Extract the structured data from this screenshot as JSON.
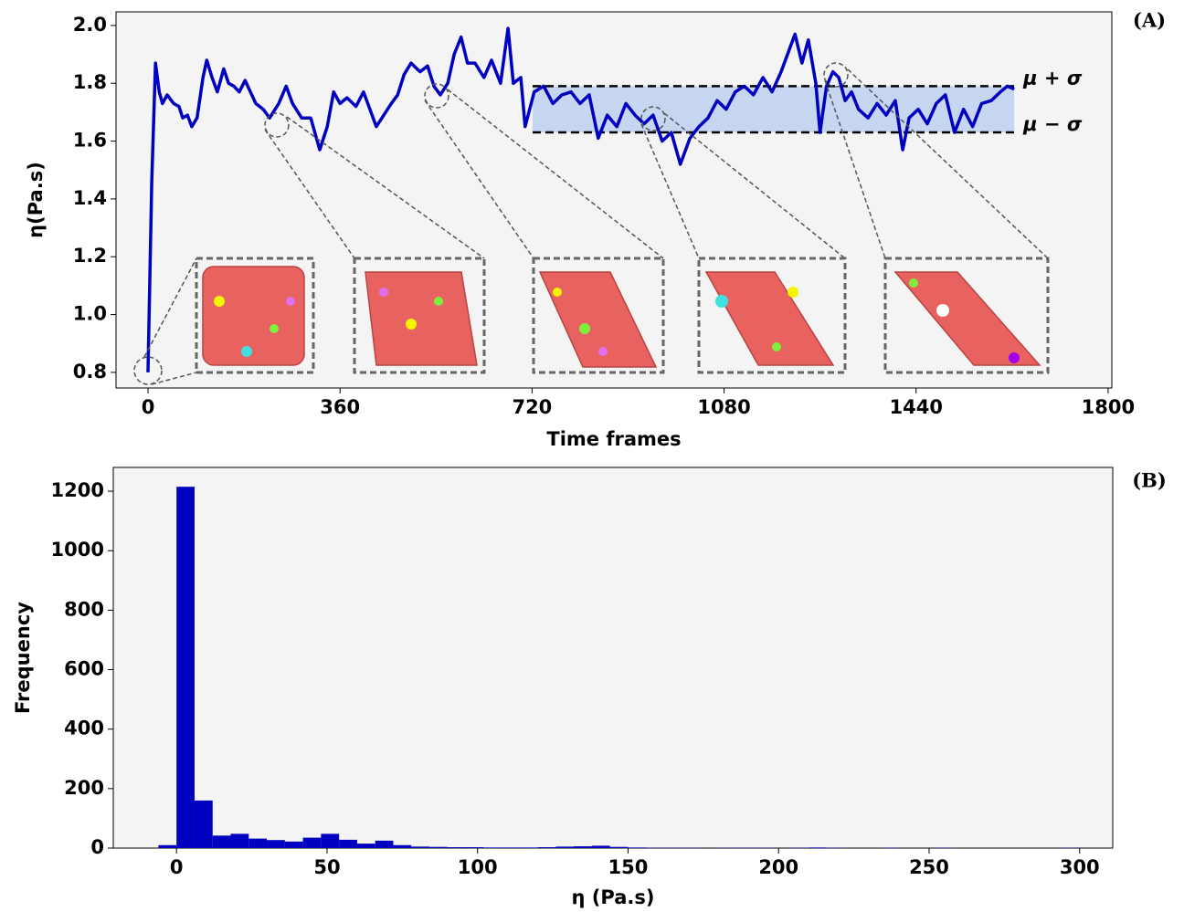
{
  "chart_data": [
    {
      "type": "line",
      "panel_label": "(A)",
      "xlabel": "Time frames",
      "ylabel": "η(Pa.s)",
      "color": "#0000c0",
      "x": [
        0,
        7,
        14,
        21,
        27,
        36,
        48,
        58,
        65,
        74,
        82,
        92,
        103,
        110,
        120,
        130,
        142,
        151,
        161,
        171,
        182,
        192,
        202,
        216,
        228,
        245,
        259,
        271,
        288,
        305,
        322,
        336,
        348,
        360,
        373,
        390,
        404,
        416,
        428,
        442,
        456,
        468,
        480,
        493,
        510,
        524,
        536,
        548,
        562,
        574,
        587,
        599,
        613,
        630,
        644,
        661,
        675,
        685,
        699,
        707,
        724,
        742,
        759,
        776,
        793,
        810,
        827,
        844,
        861,
        879,
        896,
        913,
        930,
        947,
        964,
        981,
        998,
        1016,
        1033,
        1050,
        1067,
        1084,
        1101,
        1118,
        1135,
        1153,
        1170,
        1187,
        1199,
        1213,
        1226,
        1238,
        1252,
        1260,
        1272,
        1284,
        1295,
        1307,
        1319,
        1332,
        1350,
        1367,
        1384,
        1401,
        1415,
        1427,
        1444,
        1461,
        1478,
        1495,
        1512,
        1529,
        1546,
        1563,
        1581,
        1598,
        1611,
        1624
      ],
      "values": [
        0.8,
        1.46,
        1.87,
        1.77,
        1.73,
        1.76,
        1.73,
        1.72,
        1.68,
        1.69,
        1.65,
        1.68,
        1.82,
        1.88,
        1.82,
        1.77,
        1.85,
        1.8,
        1.79,
        1.77,
        1.81,
        1.77,
        1.73,
        1.71,
        1.68,
        1.73,
        1.79,
        1.73,
        1.68,
        1.68,
        1.57,
        1.65,
        1.77,
        1.73,
        1.75,
        1.72,
        1.77,
        1.71,
        1.65,
        1.69,
        1.73,
        1.76,
        1.83,
        1.87,
        1.84,
        1.86,
        1.79,
        1.76,
        1.8,
        1.9,
        1.96,
        1.87,
        1.87,
        1.82,
        1.88,
        1.8,
        1.99,
        1.8,
        1.82,
        1.65,
        1.77,
        1.79,
        1.73,
        1.76,
        1.77,
        1.73,
        1.76,
        1.61,
        1.69,
        1.65,
        1.73,
        1.69,
        1.66,
        1.69,
        1.6,
        1.63,
        1.52,
        1.61,
        1.65,
        1.68,
        1.74,
        1.71,
        1.77,
        1.79,
        1.76,
        1.82,
        1.77,
        1.84,
        1.9,
        1.97,
        1.87,
        1.95,
        1.8,
        1.63,
        1.79,
        1.84,
        1.82,
        1.74,
        1.77,
        1.71,
        1.68,
        1.73,
        1.69,
        1.74,
        1.57,
        1.68,
        1.71,
        1.66,
        1.73,
        1.76,
        1.63,
        1.71,
        1.65,
        1.73,
        1.74,
        1.77,
        1.79,
        1.78
      ],
      "band": {
        "xrange": [
          721,
          1624
        ],
        "y": [
          1.63,
          1.79
        ],
        "color": "#c6d6f1"
      },
      "annotations": [
        "μ + σ",
        "μ − σ"
      ],
      "xlim": [
        -60,
        1807
      ],
      "ylim": [
        0.746,
        2.047
      ],
      "xticks": [
        0,
        360,
        720,
        1080,
        1440,
        1800
      ],
      "yticks": [
        0.8,
        {
          "value": 1,
          "label": "1.0"
        },
        1.2,
        1.4,
        1.6,
        1.8,
        {
          "value": 2,
          "label": "2.0"
        }
      ]
    },
    {
      "type": "histogram",
      "panel_label": "(B)",
      "xlabel": "η (Pa.s)",
      "ylabel": "Frequency",
      "color": "#0000c0",
      "bins": [
        -6,
        0,
        6,
        12,
        18,
        24,
        30,
        36,
        42,
        48,
        54,
        60,
        66,
        72,
        78,
        84,
        90,
        96,
        102,
        108,
        114,
        120,
        126,
        132,
        138,
        144,
        150,
        156,
        162,
        168,
        174,
        180,
        186,
        192,
        198,
        204,
        210,
        216,
        222,
        228,
        234,
        240,
        246,
        252,
        258,
        264,
        270,
        276,
        282,
        288,
        294,
        300
      ],
      "values": [
        10,
        1215,
        160,
        42,
        48,
        32,
        27,
        22,
        35,
        48,
        28,
        15,
        25,
        10,
        5,
        4,
        3,
        3,
        2,
        2,
        2,
        3,
        5,
        6,
        8,
        4,
        2,
        1,
        1,
        1,
        0,
        1,
        1,
        1,
        0,
        1,
        2,
        1,
        0,
        0,
        1,
        0,
        0,
        1,
        0,
        0,
        0,
        0,
        0,
        0,
        1
      ],
      "xlim": [
        -21,
        311
      ],
      "ylim": [
        0,
        1280
      ],
      "xticks": [
        0,
        50,
        100,
        150,
        200,
        250,
        300
      ],
      "yticks": [
        0,
        200,
        400,
        600,
        800,
        1000,
        1200
      ]
    }
  ]
}
